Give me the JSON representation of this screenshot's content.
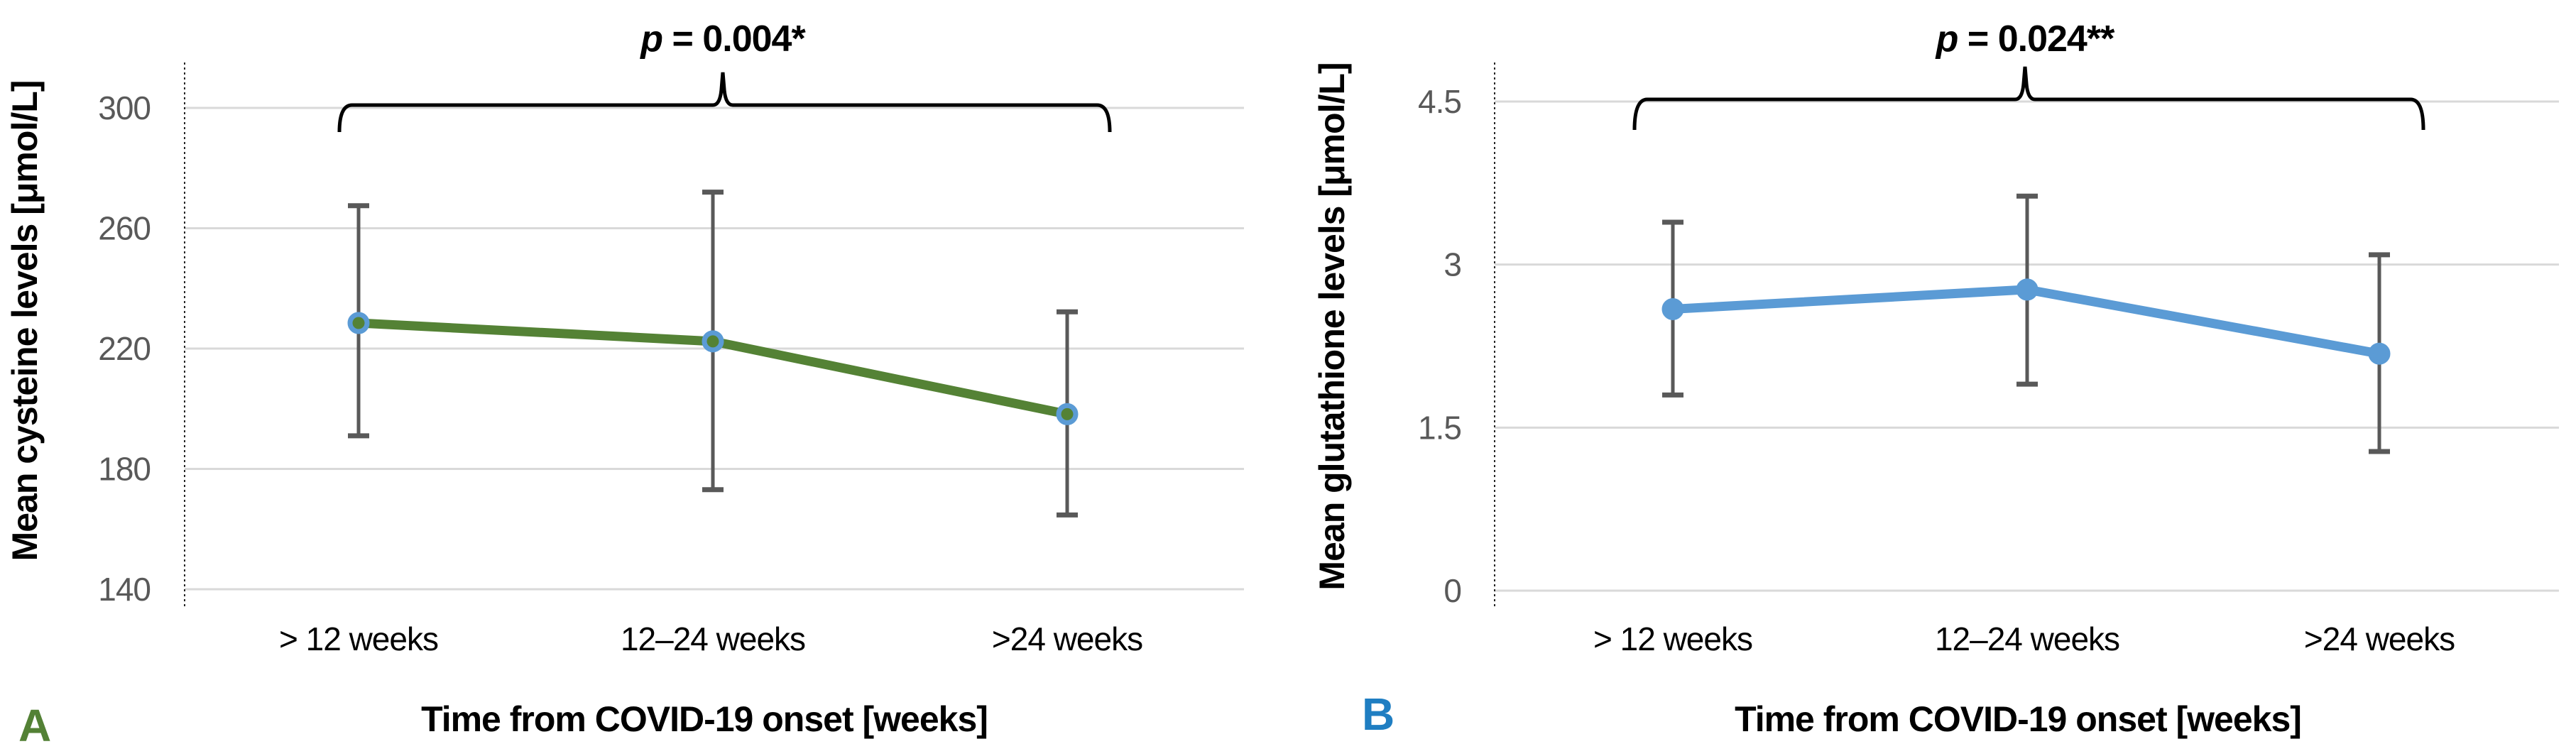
{
  "figure": {
    "background": "#FFFFFF",
    "description_visible_panels": 2
  },
  "chart_data": [
    {
      "type": "line",
      "panel_label": "A",
      "panel_label_color": "#538135",
      "p_annotation": {
        "italic": "p",
        "rest": " = 0.004*",
        "full": "p = 0.004*"
      },
      "categories": [
        "> 12 weeks",
        "12–24 weeks",
        ">24 weeks"
      ],
      "values": [
        228.5,
        222.4,
        198.2
      ],
      "error_upper": [
        267.5,
        272.0,
        232.2
      ],
      "error_lower": [
        191.0,
        173.1,
        164.7
      ],
      "xlabel": "Time from COVID-19 onset [weeks]",
      "ylabel": "Mean cysteine levels [μmol/L]",
      "ylim": [
        140,
        300
      ],
      "ytick_values": [
        300,
        260,
        220,
        180,
        140
      ],
      "ytick_labels": [
        "300",
        "260",
        "220",
        "180",
        "140"
      ],
      "grid": true,
      "legend": false,
      "colors": {
        "line": "#548235",
        "marker_fill": "#548235",
        "marker_ring": "#5B9BD5",
        "error_bar": "#595959",
        "gridline": "#D9D9D9",
        "tick_label": "#595959",
        "annotation": "#000000"
      }
    },
    {
      "type": "line",
      "panel_label": "B",
      "panel_label_color": "#1F7EC2",
      "p_annotation": {
        "italic": "p",
        "rest": " = 0.024**",
        "full": "p = 0.024**"
      },
      "categories": [
        "> 12 weeks",
        "12–24 weeks",
        ">24 weeks"
      ],
      "values": [
        2.59,
        2.77,
        2.18
      ],
      "error_upper": [
        3.39,
        3.63,
        3.09
      ],
      "error_lower": [
        1.8,
        1.9,
        1.28
      ],
      "xlabel": "Time from COVID-19 onset [weeks]",
      "ylabel": "Mean glutathione levels [μmol/L]",
      "ylim": [
        0,
        4.5
      ],
      "ytick_values": [
        4.5,
        3,
        1.5,
        0
      ],
      "ytick_labels": [
        "4.5",
        "3",
        "1.5",
        "0"
      ],
      "grid": true,
      "legend": false,
      "colors": {
        "line": "#5B9BD5",
        "marker_fill": "#5B9BD5",
        "marker_ring": "#5B9BD5",
        "error_bar": "#595959",
        "gridline": "#D9D9D9",
        "tick_label": "#595959",
        "annotation": "#000000"
      }
    }
  ]
}
